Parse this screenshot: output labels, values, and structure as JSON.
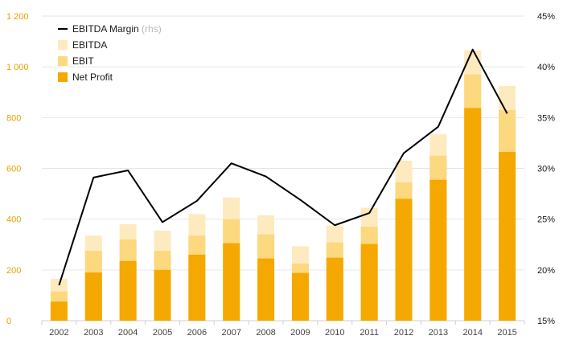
{
  "chart_data": {
    "type": "bar",
    "categories": [
      "2002",
      "2003",
      "2004",
      "2005",
      "2006",
      "2007",
      "2008",
      "2009",
      "2010",
      "2011",
      "2012",
      "2013",
      "2014",
      "2015"
    ],
    "series": [
      {
        "name": "Net Profit",
        "kind": "bar",
        "color": "#f5a800",
        "values": [
          75,
          190,
          235,
          200,
          260,
          305,
          245,
          188,
          248,
          302,
          480,
          555,
          838,
          665
        ]
      },
      {
        "name": "EBIT",
        "kind": "bar",
        "color": "#fcd87e",
        "values": [
          115,
          275,
          320,
          275,
          335,
          400,
          340,
          225,
          308,
          370,
          545,
          650,
          970,
          830
        ]
      },
      {
        "name": "EBITDA",
        "kind": "bar",
        "color": "#feeabf",
        "values": [
          165,
          335,
          380,
          355,
          420,
          485,
          415,
          293,
          375,
          445,
          630,
          735,
          1065,
          925
        ]
      },
      {
        "name": "EBITDA Margin",
        "name_suffix": "(rhs)",
        "kind": "line",
        "axis": "right",
        "color": "#000000",
        "values": [
          18.5,
          29.1,
          29.8,
          24.7,
          26.8,
          30.5,
          29.2,
          26.9,
          24.4,
          25.6,
          31.5,
          34.1,
          41.7,
          35.4
        ]
      }
    ],
    "y_left": {
      "min": 0,
      "max": 1200,
      "ticks": [
        0,
        200,
        400,
        600,
        800,
        1000,
        1200
      ],
      "tick_labels": [
        "0",
        "200",
        "400",
        "600",
        "800",
        "1 000",
        "1 200"
      ]
    },
    "y_right": {
      "min": 15,
      "max": 45,
      "ticks": [
        15,
        20,
        25,
        30,
        35,
        40,
        45
      ],
      "tick_labels": [
        "15%",
        "20%",
        "25%",
        "30%",
        "35%",
        "40%",
        "45%"
      ]
    },
    "grid": true,
    "legend_position": "top-left",
    "legend_order": [
      "EBITDA Margin",
      "EBITDA",
      "EBIT",
      "Net Profit"
    ]
  }
}
